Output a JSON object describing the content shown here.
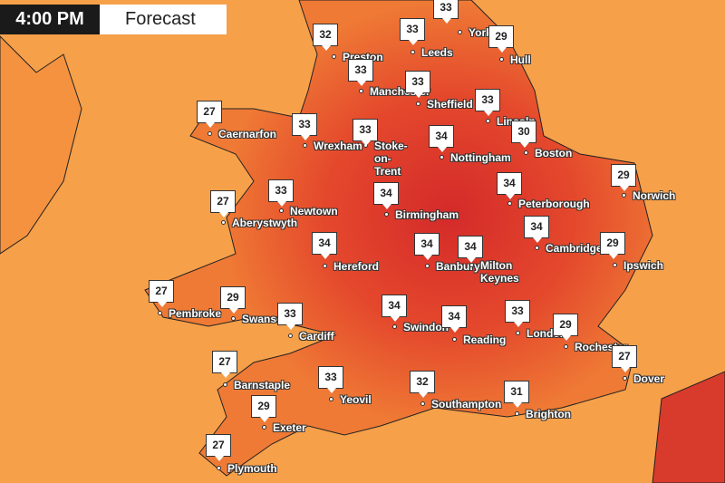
{
  "header": {
    "time": "4:00 PM",
    "title": "Forecast"
  },
  "cities": [
    {
      "name": "Preston",
      "temp": 32
    },
    {
      "name": "Leeds",
      "temp": 33
    },
    {
      "name": "York",
      "temp": 33
    },
    {
      "name": "Hull",
      "temp": 29
    },
    {
      "name": "Manchester",
      "temp": 33
    },
    {
      "name": "Sheffield",
      "temp": 33
    },
    {
      "name": "Lincoln",
      "temp": 33
    },
    {
      "name": "Caernarfon",
      "temp": 27
    },
    {
      "name": "Wrexham",
      "temp": 33
    },
    {
      "name": "Stoke-on-Trent",
      "temp": 33
    },
    {
      "name": "Nottingham",
      "temp": 34
    },
    {
      "name": "Boston",
      "temp": 30
    },
    {
      "name": "Norwich",
      "temp": 29
    },
    {
      "name": "Peterborough",
      "temp": 34
    },
    {
      "name": "Aberystwyth",
      "temp": 27
    },
    {
      "name": "Newtown",
      "temp": 33
    },
    {
      "name": "Birmingham",
      "temp": 34
    },
    {
      "name": "Cambridge",
      "temp": 34
    },
    {
      "name": "Ipswich",
      "temp": 29
    },
    {
      "name": "Hereford",
      "temp": 34
    },
    {
      "name": "Banbury",
      "temp": 34
    },
    {
      "name": "Milton Keynes",
      "temp": 34
    },
    {
      "name": "Pembroke",
      "temp": 27
    },
    {
      "name": "Swansea",
      "temp": 29
    },
    {
      "name": "Cardiff",
      "temp": 33
    },
    {
      "name": "Swindon",
      "temp": 34
    },
    {
      "name": "Reading",
      "temp": 34
    },
    {
      "name": "London",
      "temp": 33
    },
    {
      "name": "Rochester",
      "temp": 29
    },
    {
      "name": "Dover",
      "temp": 27
    },
    {
      "name": "Barnstaple",
      "temp": 27
    },
    {
      "name": "Yeovil",
      "temp": 33
    },
    {
      "name": "Southampton",
      "temp": 32
    },
    {
      "name": "Brighton",
      "temp": 31
    },
    {
      "name": "Exeter",
      "temp": 29
    },
    {
      "name": "Plymouth",
      "temp": 27
    }
  ]
}
